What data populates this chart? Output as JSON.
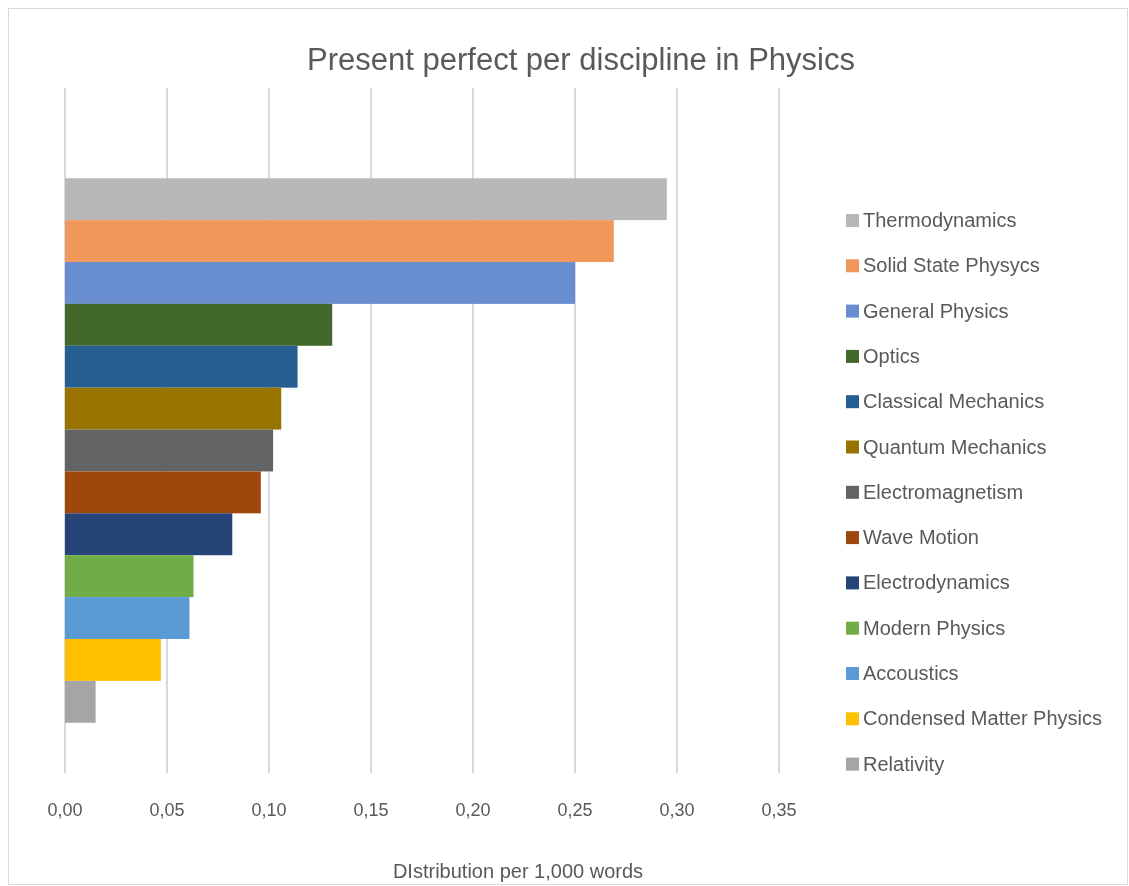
{
  "chart_data": {
    "type": "bar",
    "orientation": "horizontal",
    "title": "Present perfect per discipline in Physics",
    "xlabel": "DIstribution per 1,000 words",
    "categories": [
      null
    ],
    "series": [
      {
        "name": "Thermodynamics",
        "color": "#b7b7b7",
        "values": [
          0.295
        ]
      },
      {
        "name": "Solid State Physycs",
        "color": "#f0975a",
        "values": [
          0.269
        ]
      },
      {
        "name": "General Physics",
        "color": "#698ed0",
        "values": [
          0.25
        ]
      },
      {
        "name": "Optics",
        "color": "#43682b",
        "values": [
          0.131
        ]
      },
      {
        "name": "Classical Mechanics",
        "color": "#255e91",
        "values": [
          0.114
        ]
      },
      {
        "name": "Quantum Mechanics",
        "color": "#997300",
        "values": [
          0.106
        ]
      },
      {
        "name": "Electromagnetism",
        "color": "#636363",
        "values": [
          0.102
        ]
      },
      {
        "name": "Wave Motion",
        "color": "#9e480e",
        "values": [
          0.096
        ]
      },
      {
        "name": "Electrodynamics",
        "color": "#264478",
        "values": [
          0.082
        ]
      },
      {
        "name": "Modern Physics",
        "color": "#70ad47",
        "values": [
          0.063
        ]
      },
      {
        "name": "Accoustics",
        "color": "#5b9bd5",
        "values": [
          0.061
        ]
      },
      {
        "name": "Condensed Matter Physics",
        "color": "#ffc000",
        "values": [
          0.047
        ]
      },
      {
        "name": "Relativity",
        "color": "#a5a5a5",
        "values": [
          0.015
        ]
      }
    ],
    "xlim": [
      0,
      0.35
    ],
    "xticks": [
      {
        "value": 0,
        "label": "0,00"
      },
      {
        "value": 0.05,
        "label": "0,05"
      },
      {
        "value": 0.1,
        "label": "0,10"
      },
      {
        "value": 0.15,
        "label": "0,15"
      },
      {
        "value": 0.2,
        "label": "0,20"
      },
      {
        "value": 0.25,
        "label": "0,25"
      },
      {
        "value": 0.3,
        "label": "0,30"
      },
      {
        "value": 0.35,
        "label": "0,35"
      }
    ],
    "grid": "x",
    "legend": "right"
  }
}
